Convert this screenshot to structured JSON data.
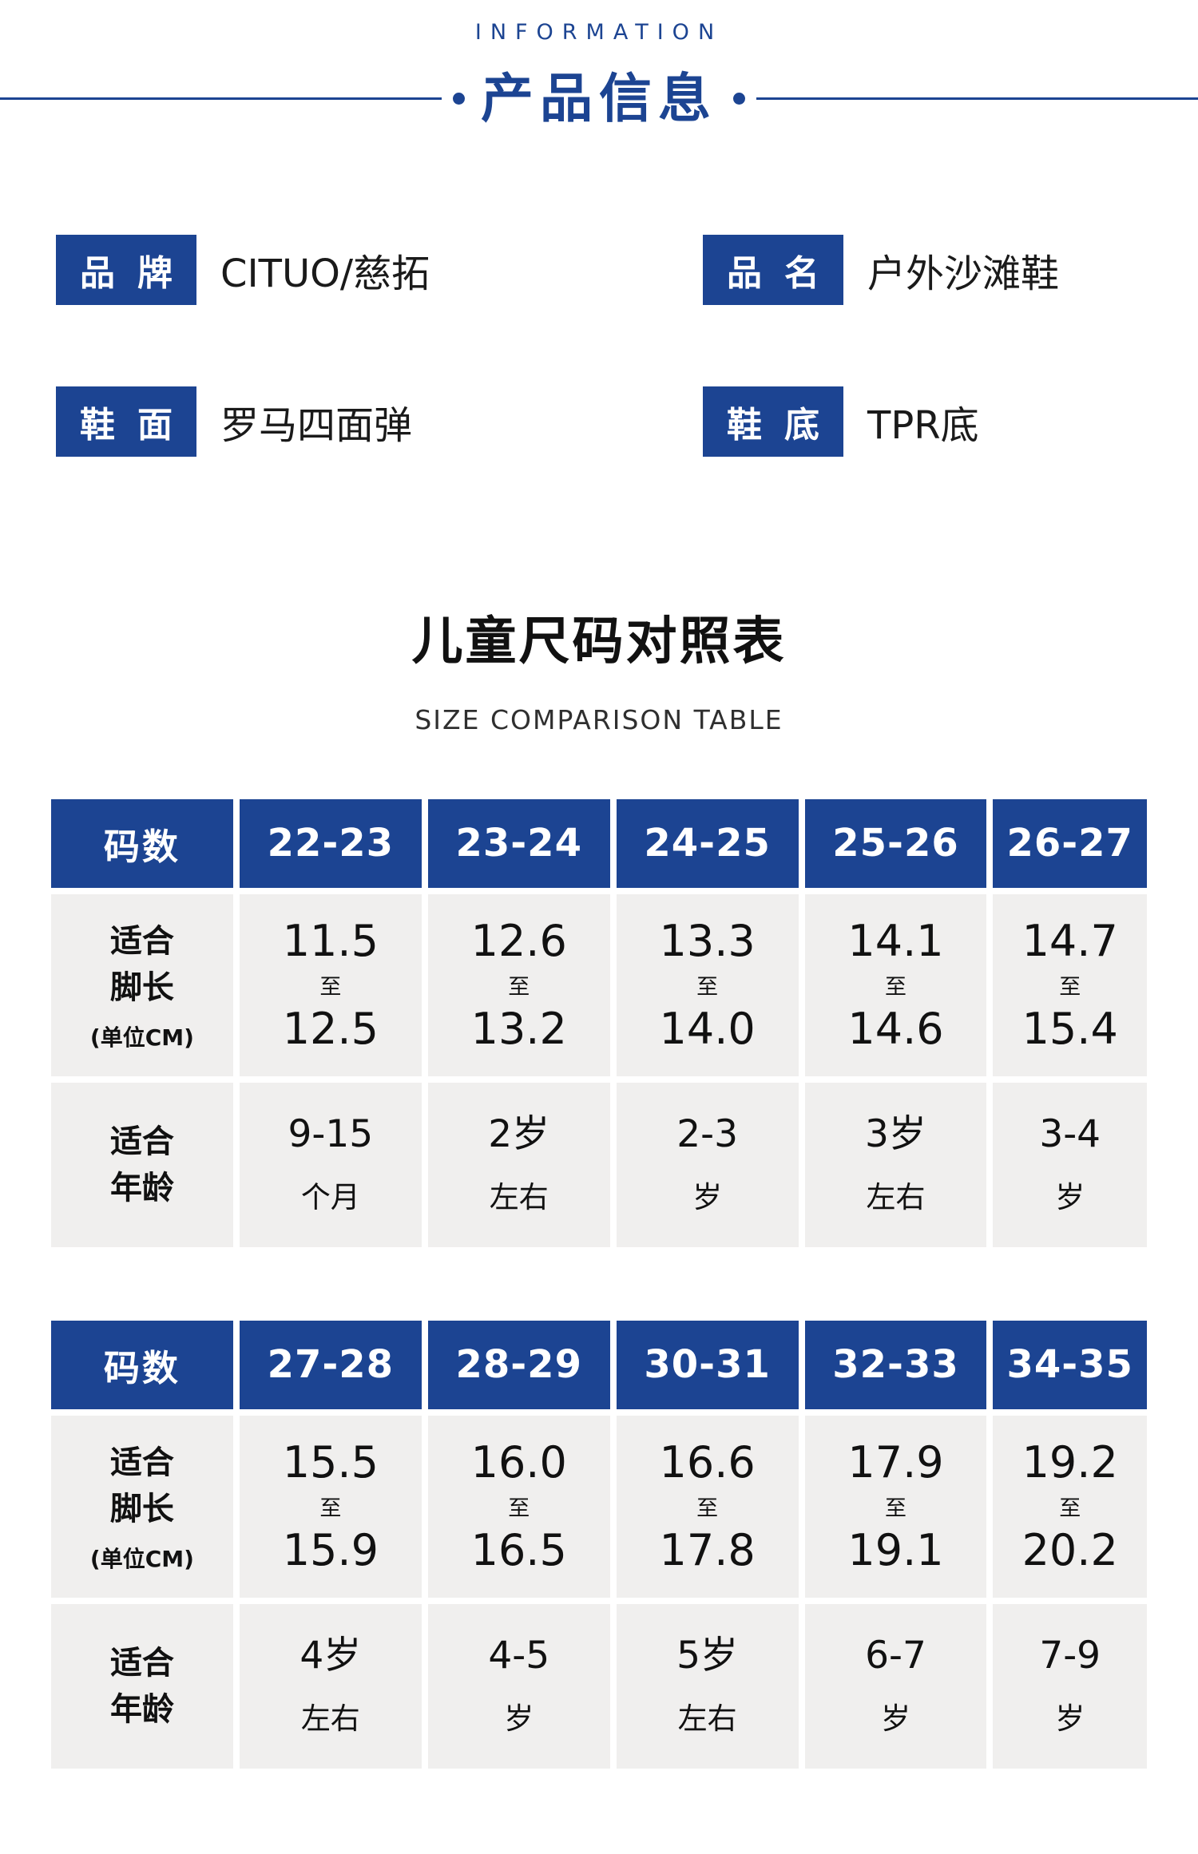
{
  "theme": {
    "blue": "#1c4492",
    "cell_bg": "#f0efee",
    "text_dark": "#111111"
  },
  "header": {
    "kicker": "INFORMATION",
    "title": "产品信息"
  },
  "info": {
    "items": [
      {
        "label": "品牌",
        "value": "CITUO/慈拓"
      },
      {
        "label": "品名",
        "value": "户外沙滩鞋"
      },
      {
        "label": "鞋面",
        "value": "罗马四面弹"
      },
      {
        "label": "鞋底",
        "value": "TPR底"
      }
    ]
  },
  "size_section": {
    "title": "儿童尺码对照表",
    "subtitle": "SIZE COMPARISON TABLE"
  },
  "tables": [
    {
      "size_header_label": "码数",
      "foot_label_lines": [
        "适合",
        "脚长",
        "(单位CM)"
      ],
      "age_label_lines": [
        "适合",
        "年龄"
      ],
      "range_word": "至",
      "columns": [
        {
          "size": "22-23",
          "foot_min": "11.5",
          "foot_max": "12.5",
          "age_top": "9-15",
          "age_bottom": "个月"
        },
        {
          "size": "23-24",
          "foot_min": "12.6",
          "foot_max": "13.2",
          "age_top": "2岁",
          "age_bottom": "左右"
        },
        {
          "size": "24-25",
          "foot_min": "13.3",
          "foot_max": "14.0",
          "age_top": "2-3",
          "age_bottom": "岁"
        },
        {
          "size": "25-26",
          "foot_min": "14.1",
          "foot_max": "14.6",
          "age_top": "3岁",
          "age_bottom": "左右"
        },
        {
          "size": "26-27",
          "foot_min": "14.7",
          "foot_max": "15.4",
          "age_top": "3-4",
          "age_bottom": "岁"
        }
      ]
    },
    {
      "size_header_label": "码数",
      "foot_label_lines": [
        "适合",
        "脚长",
        "(单位CM)"
      ],
      "age_label_lines": [
        "适合",
        "年龄"
      ],
      "range_word": "至",
      "columns": [
        {
          "size": "27-28",
          "foot_min": "15.5",
          "foot_max": "15.9",
          "age_top": "4岁",
          "age_bottom": "左右"
        },
        {
          "size": "28-29",
          "foot_min": "16.0",
          "foot_max": "16.5",
          "age_top": "4-5",
          "age_bottom": "岁"
        },
        {
          "size": "30-31",
          "foot_min": "16.6",
          "foot_max": "17.8",
          "age_top": "5岁",
          "age_bottom": "左右"
        },
        {
          "size": "32-33",
          "foot_min": "17.9",
          "foot_max": "19.1",
          "age_top": "6-7",
          "age_bottom": "岁"
        },
        {
          "size": "34-35",
          "foot_min": "19.2",
          "foot_max": "20.2",
          "age_top": "7-9",
          "age_bottom": "岁"
        }
      ]
    }
  ]
}
